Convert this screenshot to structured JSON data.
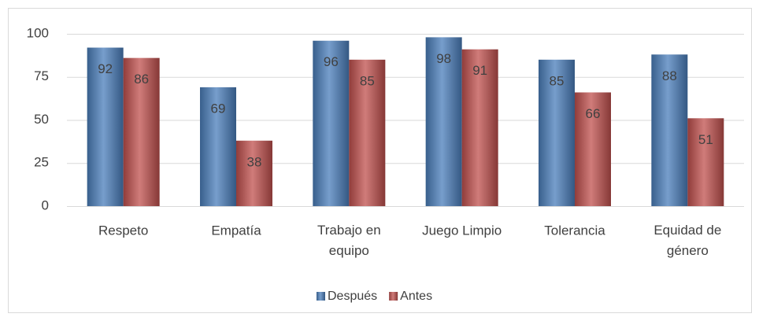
{
  "chart_data": {
    "type": "bar",
    "categories": [
      "Respeto",
      "Empatía",
      "Trabajo en equipo",
      "Juego Limpio",
      "Tolerancia",
      "Equidad de género"
    ],
    "series": [
      {
        "name": "Después",
        "color": "#4a7ebb",
        "values": [
          92,
          69,
          96,
          98,
          85,
          88
        ]
      },
      {
        "name": "Antes",
        "color": "#c0504d",
        "values": [
          86,
          38,
          85,
          91,
          66,
          51
        ]
      }
    ],
    "ylim": [
      0,
      100
    ],
    "yticks": [
      0,
      25,
      50,
      75,
      100
    ],
    "grid": true,
    "legend": "bottom"
  }
}
